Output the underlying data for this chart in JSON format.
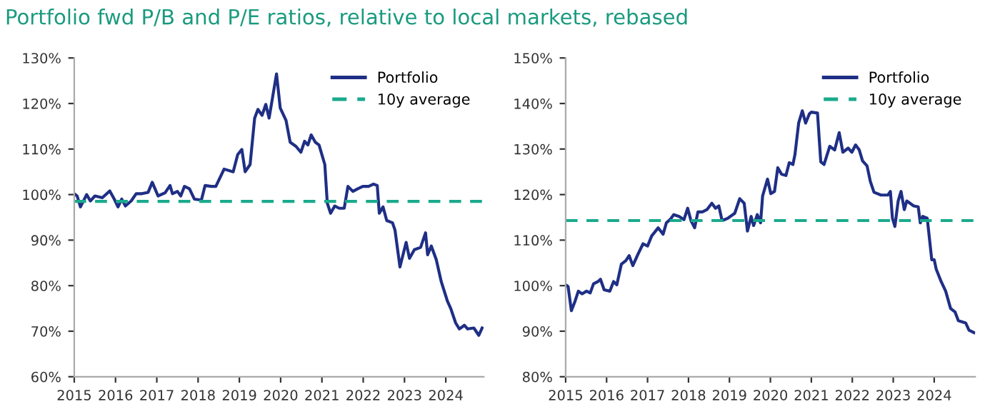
{
  "chart_data": [
    {
      "type": "line",
      "title": "Portfolio fwd P/B and P/E ratios, relative to local markets, rebased",
      "xlim": [
        2015,
        2024.92
      ],
      "xticks": [
        2015,
        2016,
        2017,
        2018,
        2019,
        2020,
        2021,
        2022,
        2023,
        2024
      ],
      "ylim": [
        60,
        130
      ],
      "yticks": [
        {
          "value": 60,
          "label": "60%"
        },
        {
          "value": 70,
          "label": "70%"
        },
        {
          "value": 80,
          "label": "80%"
        },
        {
          "value": 90,
          "label": "90%"
        },
        {
          "value": 100,
          "label": "100%"
        },
        {
          "value": 110,
          "label": "110%"
        },
        {
          "value": 120,
          "label": "120%"
        },
        {
          "value": 130,
          "label": "130%"
        }
      ],
      "grid": false,
      "legend": "top right",
      "line_style": "solid",
      "marker": "none",
      "series": [
        {
          "name": "Portfolio",
          "color": "#1f2f85",
          "x": [
            2015.0,
            2015.07,
            2015.15,
            2015.3,
            2015.39,
            2015.5,
            2015.68,
            2015.86,
            2015.97,
            2016.06,
            2016.15,
            2016.24,
            2016.38,
            2016.5,
            2016.64,
            2016.79,
            2016.89,
            2017.03,
            2017.2,
            2017.32,
            2017.38,
            2017.5,
            2017.58,
            2017.67,
            2017.79,
            2017.91,
            2018.08,
            2018.17,
            2018.32,
            2018.43,
            2018.63,
            2018.85,
            2018.96,
            2019.06,
            2019.14,
            2019.26,
            2019.37,
            2019.45,
            2019.55,
            2019.64,
            2019.72,
            2019.8,
            2019.9,
            2019.99,
            2020.13,
            2020.23,
            2020.37,
            2020.49,
            2020.58,
            2020.66,
            2020.74,
            2020.84,
            2020.93,
            2021.07,
            2021.13,
            2021.21,
            2021.31,
            2021.42,
            2021.54,
            2021.63,
            2021.75,
            2021.87,
            2021.99,
            2022.13,
            2022.25,
            2022.34,
            2022.39,
            2022.48,
            2022.57,
            2022.71,
            2022.77,
            2022.89,
            2023.04,
            2023.12,
            2023.24,
            2023.39,
            2023.51,
            2023.56,
            2023.65,
            2023.77,
            2023.89,
            2024.04,
            2024.12,
            2024.24,
            2024.33,
            2024.45,
            2024.53,
            2024.68,
            2024.8,
            2024.88
          ],
          "values": [
            100.2,
            99.7,
            97.3,
            100,
            98.6,
            99.7,
            99.3,
            100.8,
            99,
            97.3,
            99,
            97.5,
            98.6,
            100.2,
            100.2,
            100.5,
            102.7,
            99.7,
            100.4,
            102,
            100.2,
            100.7,
            99.7,
            101.8,
            101.3,
            99,
            98.8,
            102,
            101.8,
            101.8,
            105.6,
            105,
            108.8,
            109.9,
            105,
            106.6,
            116.8,
            118.7,
            117.4,
            119.8,
            116.8,
            121.1,
            126.5,
            119,
            116.3,
            111.5,
            110.6,
            109.3,
            111.7,
            110.9,
            113.1,
            111.5,
            110.9,
            106.6,
            98.1,
            95.9,
            97.5,
            97,
            97,
            101.8,
            100.7,
            101.3,
            101.8,
            101.8,
            102.3,
            102,
            95.9,
            97.3,
            94.3,
            93.8,
            92.2,
            84.1,
            89.5,
            86,
            87.9,
            88.4,
            91.6,
            86.8,
            88.7,
            85.7,
            80.9,
            76.6,
            75,
            71.8,
            70.5,
            71.3,
            70.5,
            70.7,
            69.1,
            70.7
          ]
        }
      ],
      "ref_lines": [
        {
          "axis": "y",
          "value": 98.5,
          "label": "10y average",
          "color": "#1aaa8c",
          "line_style": "dashed"
        }
      ]
    },
    {
      "type": "line",
      "xlim": [
        2015,
        2025.0
      ],
      "xticks": [
        2015,
        2016,
        2017,
        2018,
        2019,
        2020,
        2021,
        2022,
        2023,
        2024
      ],
      "ylim": [
        80,
        150
      ],
      "yticks": [
        {
          "value": 80,
          "label": "80%"
        },
        {
          "value": 90,
          "label": "90%"
        },
        {
          "value": 100,
          "label": "100%"
        },
        {
          "value": 110,
          "label": "110%"
        },
        {
          "value": 120,
          "label": "120%"
        },
        {
          "value": 130,
          "label": "130%"
        },
        {
          "value": 140,
          "label": "140%"
        },
        {
          "value": 150,
          "label": "150%"
        }
      ],
      "grid": false,
      "legend": "top right",
      "line_style": "solid",
      "marker": "none",
      "series": [
        {
          "name": "Portfolio",
          "color": "#1f2f85",
          "x": [
            2015.0,
            2015.06,
            2015.14,
            2015.23,
            2015.31,
            2015.4,
            2015.51,
            2015.6,
            2015.68,
            2015.79,
            2015.85,
            2015.94,
            2016.08,
            2016.17,
            2016.25,
            2016.36,
            2016.47,
            2016.55,
            2016.64,
            2016.76,
            2016.89,
            2017.0,
            2017.1,
            2017.26,
            2017.38,
            2017.46,
            2017.55,
            2017.64,
            2017.77,
            2017.89,
            2017.98,
            2018.06,
            2018.15,
            2018.23,
            2018.34,
            2018.45,
            2018.57,
            2018.66,
            2018.74,
            2018.82,
            2018.96,
            2019.13,
            2019.25,
            2019.36,
            2019.44,
            2019.53,
            2019.59,
            2019.68,
            2019.76,
            2019.81,
            2019.93,
            2020.01,
            2020.1,
            2020.18,
            2020.27,
            2020.38,
            2020.46,
            2020.55,
            2020.6,
            2020.69,
            2020.78,
            2020.86,
            2020.95,
            2021.0,
            2021.15,
            2021.23,
            2021.31,
            2021.45,
            2021.57,
            2021.68,
            2021.77,
            2021.9,
            2021.99,
            2022.08,
            2022.17,
            2022.25,
            2022.36,
            2022.44,
            2022.53,
            2022.7,
            2022.87,
            2022.93,
            2022.98,
            2023.04,
            2023.12,
            2023.19,
            2023.27,
            2023.33,
            2023.5,
            2023.61,
            2023.66,
            2023.72,
            2023.83,
            2023.94,
            2024.0,
            2024.05,
            2024.17,
            2024.28,
            2024.4,
            2024.51,
            2024.59,
            2024.77,
            2024.85,
            2024.97
          ],
          "values": [
            100.2,
            99.8,
            94.5,
            96.6,
            98.8,
            98.2,
            98.8,
            98.4,
            100.4,
            100.9,
            101.4,
            99.1,
            98.8,
            100.9,
            100.2,
            104.7,
            105.5,
            106.6,
            104.4,
            106.8,
            109.2,
            108.7,
            110.9,
            112.7,
            111.3,
            113.8,
            114.5,
            115.6,
            115.2,
            114.5,
            117,
            114.3,
            112.7,
            116.2,
            116.2,
            116.7,
            118.1,
            117,
            117.5,
            114.3,
            114.8,
            115.9,
            119.1,
            118.1,
            112,
            115.2,
            113.2,
            115.6,
            113.8,
            119.7,
            123.4,
            120.2,
            120.7,
            125.9,
            124.5,
            124.2,
            127,
            126.6,
            128.8,
            135.7,
            138.4,
            135.7,
            137.7,
            138.1,
            137.9,
            127.2,
            126.6,
            130.6,
            129.8,
            133.6,
            129.3,
            130.2,
            129.3,
            130.9,
            129.8,
            127.4,
            126.3,
            122.9,
            120.5,
            119.9,
            119.9,
            120.7,
            114.8,
            113,
            118.6,
            120.7,
            116.7,
            118.6,
            117.5,
            117.3,
            113.8,
            115.2,
            114.8,
            105.7,
            105.7,
            103.6,
            100.9,
            98.8,
            95,
            94.2,
            92.3,
            91.8,
            90.2,
            89.7
          ]
        }
      ],
      "ref_lines": [
        {
          "axis": "y",
          "value": 114.3,
          "label": "10y average",
          "color": "#1aaa8c",
          "line_style": "dashed"
        }
      ]
    }
  ]
}
